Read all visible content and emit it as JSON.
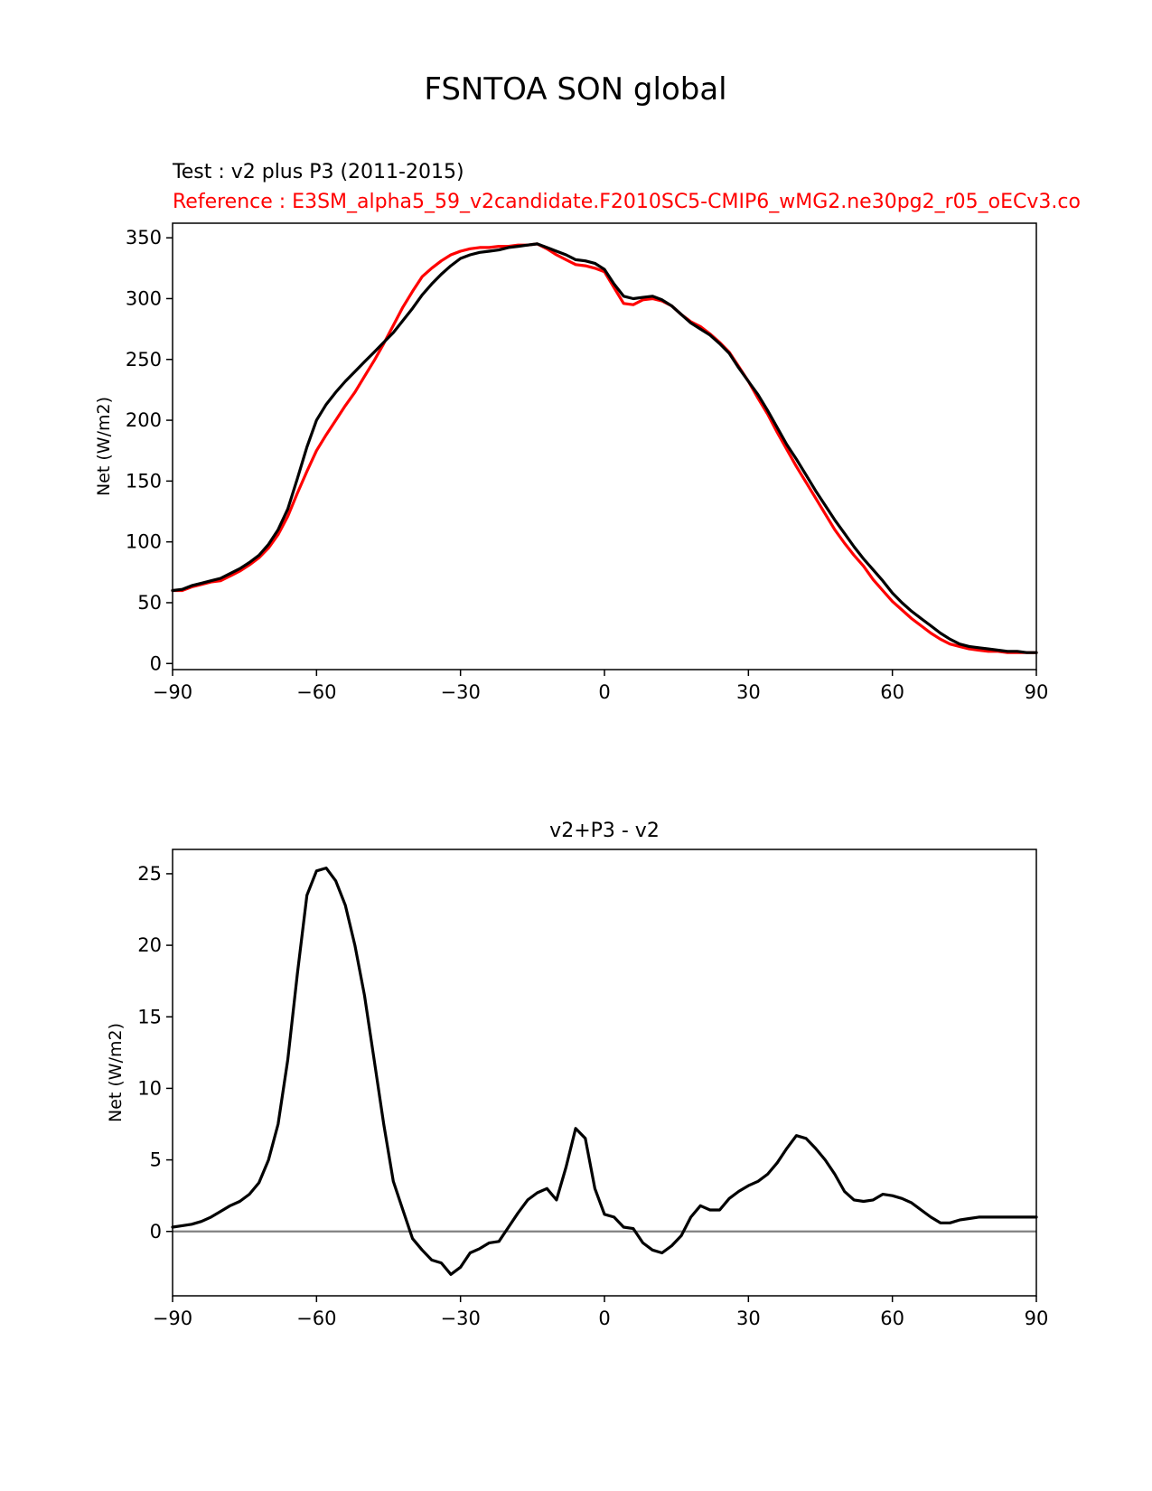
{
  "figure": {
    "title": "FSNTOA SON global"
  },
  "chart_data": [
    {
      "type": "line",
      "test_label": "Test : v2 plus P3 (2011-2015)",
      "reference_label": "Reference : E3SM_alpha5_59_v2candidate.F2010SC5-CMIP6_wMG2.ne30pg2_r05_oECv3.co",
      "xlabel": "",
      "ylabel": "Net (W/m2)",
      "xlim": [
        -90,
        90
      ],
      "ylim": [
        -5,
        362
      ],
      "xticks": [
        -90,
        -60,
        -30,
        0,
        30,
        60,
        90
      ],
      "xtick_labels": [
        "−90",
        "−60",
        "−30",
        "0",
        "30",
        "60",
        "90"
      ],
      "yticks": [
        0,
        50,
        100,
        150,
        200,
        250,
        300,
        350
      ],
      "ytick_labels": [
        "0",
        "50",
        "100",
        "150",
        "200",
        "250",
        "300",
        "350"
      ],
      "series": [
        {
          "name": "test",
          "color": "#000000",
          "x": [
            -90,
            -88,
            -86,
            -84,
            -82,
            -80,
            -78,
            -76,
            -74,
            -72,
            -70,
            -68,
            -66,
            -64,
            -62,
            -60,
            -58,
            -56,
            -54,
            -52,
            -50,
            -48,
            -46,
            -44,
            -42,
            -40,
            -38,
            -36,
            -34,
            -32,
            -30,
            -28,
            -26,
            -24,
            -22,
            -20,
            -18,
            -16,
            -14,
            -12,
            -10,
            -8,
            -6,
            -4,
            -2,
            0,
            2,
            4,
            6,
            8,
            10,
            12,
            14,
            16,
            18,
            20,
            22,
            24,
            26,
            28,
            30,
            32,
            34,
            36,
            38,
            40,
            42,
            44,
            46,
            48,
            50,
            52,
            54,
            56,
            58,
            60,
            62,
            64,
            66,
            68,
            70,
            72,
            74,
            76,
            78,
            80,
            82,
            84,
            86,
            88,
            90
          ],
          "values": [
            60,
            61,
            64,
            66,
            68,
            70,
            74,
            78,
            83,
            89,
            98,
            110,
            127,
            152,
            178,
            200,
            213,
            223,
            232,
            240,
            248,
            256,
            264,
            272,
            282,
            292,
            303,
            312,
            320,
            327,
            333,
            336,
            338,
            339,
            340,
            342,
            343,
            344,
            345,
            342,
            339,
            336,
            332,
            331,
            329,
            324,
            312,
            302,
            300,
            301,
            302,
            299,
            294,
            287,
            280,
            275,
            270,
            263,
            255,
            243,
            232,
            221,
            208,
            194,
            180,
            168,
            155,
            142,
            130,
            118,
            107,
            96,
            86,
            77,
            68,
            58,
            50,
            43,
            37,
            31,
            25,
            20,
            16,
            14,
            13,
            12,
            11,
            10,
            10,
            9,
            9
          ]
        },
        {
          "name": "reference",
          "color": "#ff0000",
          "x": [
            -90,
            -88,
            -86,
            -84,
            -82,
            -80,
            -78,
            -76,
            -74,
            -72,
            -70,
            -68,
            -66,
            -64,
            -62,
            -60,
            -58,
            -56,
            -54,
            -52,
            -50,
            -48,
            -46,
            -44,
            -42,
            -40,
            -38,
            -36,
            -34,
            -32,
            -30,
            -28,
            -26,
            -24,
            -22,
            -20,
            -18,
            -16,
            -14,
            -12,
            -10,
            -8,
            -6,
            -4,
            -2,
            0,
            2,
            4,
            6,
            8,
            10,
            12,
            14,
            16,
            18,
            20,
            22,
            24,
            26,
            28,
            30,
            32,
            34,
            36,
            38,
            40,
            42,
            44,
            46,
            48,
            50,
            52,
            54,
            56,
            58,
            60,
            62,
            64,
            66,
            68,
            70,
            72,
            74,
            76,
            78,
            80,
            82,
            84,
            86,
            88,
            90
          ],
          "values": [
            60,
            60,
            63,
            65,
            67,
            68,
            72,
            76,
            81,
            87,
            95,
            106,
            121,
            140,
            158,
            175,
            188,
            200,
            212,
            223,
            236,
            249,
            263,
            278,
            293,
            306,
            318,
            325,
            331,
            336,
            339,
            341,
            342,
            342,
            343,
            343,
            344,
            344,
            345,
            341,
            336,
            332,
            328,
            327,
            325,
            322,
            309,
            296,
            295,
            299,
            300,
            298,
            294,
            287,
            281,
            277,
            271,
            264,
            256,
            244,
            232,
            218,
            205,
            190,
            176,
            162,
            149,
            136,
            123,
            110,
            99,
            89,
            80,
            69,
            60,
            51,
            44,
            37,
            31,
            25,
            20,
            16,
            14,
            12,
            11,
            10,
            10,
            9,
            9,
            9,
            9
          ]
        }
      ]
    },
    {
      "type": "line",
      "title": "v2+P3 - v2",
      "xlabel": "",
      "ylabel": "Net (W/m2)",
      "xlim": [
        -90,
        90
      ],
      "ylim": [
        -4.5,
        26.7
      ],
      "xticks": [
        -90,
        -60,
        -30,
        0,
        30,
        60,
        90
      ],
      "xtick_labels": [
        "−90",
        "−60",
        "−30",
        "0",
        "30",
        "60",
        "90"
      ],
      "yticks": [
        0,
        5,
        10,
        15,
        20,
        25
      ],
      "ytick_labels": [
        "0",
        "5",
        "10",
        "15",
        "20",
        "25"
      ],
      "zero_line_color": "#808080",
      "series": [
        {
          "name": "difference",
          "color": "#000000",
          "x": [
            -90,
            -88,
            -86,
            -84,
            -82,
            -80,
            -78,
            -76,
            -74,
            -72,
            -70,
            -68,
            -66,
            -64,
            -62,
            -60,
            -58,
            -56,
            -54,
            -52,
            -50,
            -48,
            -46,
            -44,
            -42,
            -40,
            -38,
            -36,
            -34,
            -32,
            -30,
            -28,
            -26,
            -24,
            -22,
            -20,
            -18,
            -16,
            -14,
            -12,
            -10,
            -8,
            -6,
            -4,
            -2,
            0,
            2,
            4,
            6,
            8,
            10,
            12,
            14,
            16,
            18,
            20,
            22,
            24,
            26,
            28,
            30,
            32,
            34,
            36,
            38,
            40,
            42,
            44,
            46,
            48,
            50,
            52,
            54,
            56,
            58,
            60,
            62,
            64,
            66,
            68,
            70,
            72,
            74,
            76,
            78,
            80,
            82,
            84,
            86,
            88,
            90
          ],
          "values": [
            0.3,
            0.4,
            0.5,
            0.7,
            1.0,
            1.4,
            1.8,
            2.1,
            2.6,
            3.4,
            5.0,
            7.5,
            12.0,
            18.0,
            23.5,
            25.2,
            25.4,
            24.5,
            22.8,
            20.0,
            16.5,
            12.0,
            7.5,
            3.5,
            1.5,
            -0.5,
            -1.3,
            -2.0,
            -2.2,
            -3.0,
            -2.5,
            -1.5,
            -1.2,
            -0.8,
            -0.7,
            0.3,
            1.3,
            2.2,
            2.7,
            3.0,
            2.2,
            4.5,
            7.2,
            6.5,
            3.0,
            1.2,
            1.0,
            0.3,
            0.2,
            -0.8,
            -1.3,
            -1.5,
            -1.0,
            -0.3,
            1.0,
            1.8,
            1.5,
            1.5,
            2.3,
            2.8,
            3.2,
            3.5,
            4.0,
            4.8,
            5.8,
            6.7,
            6.5,
            5.8,
            5.0,
            4.0,
            2.8,
            2.2,
            2.1,
            2.2,
            2.6,
            2.5,
            2.3,
            2.0,
            1.5,
            1.0,
            0.6,
            0.6,
            0.8,
            0.9,
            1.0,
            1.0,
            1.0,
            1.0,
            1.0,
            1.0,
            1.0
          ]
        }
      ]
    }
  ]
}
